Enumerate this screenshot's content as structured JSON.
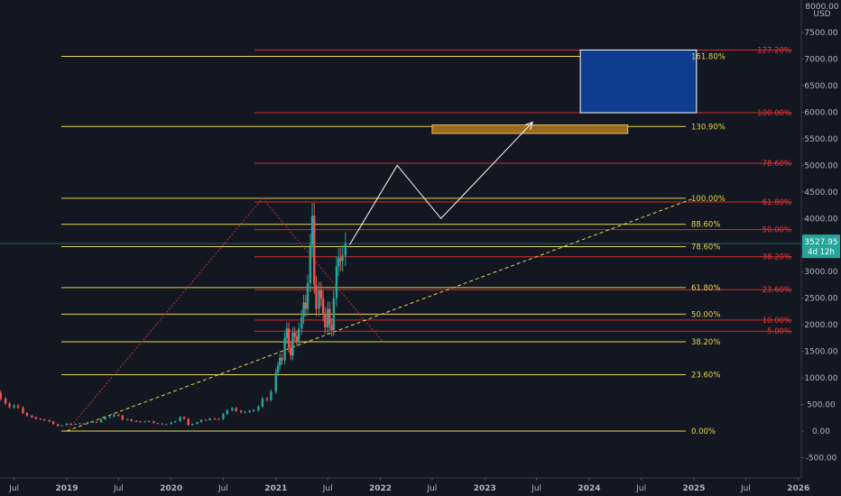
{
  "chart_data": {
    "type": "candlestick",
    "currency": "USD",
    "y_axis": {
      "top_label": "8000.00",
      "ticks": [
        "7500.00",
        "7000.00",
        "6500.00",
        "6000.00",
        "5500.00",
        "5000.00",
        "4500.00",
        "4000.00",
        "3500.00",
        "3000.00",
        "2500.00",
        "2000.00",
        "1500.00",
        "1000.00",
        "500.00",
        "0.00",
        "-500.00"
      ],
      "ylim": [
        -700,
        8000
      ]
    },
    "x_axis": {
      "ticks": [
        "Jul",
        "2019",
        "Jul",
        "2020",
        "Jul",
        "2021",
        "Jul",
        "2022",
        "Jul",
        "2023",
        "Jul",
        "2024",
        "Jul",
        "2025",
        "Jul",
        "2026"
      ],
      "tick_dates": [
        "2018-07",
        "2019-01",
        "2019-07",
        "2020-01",
        "2020-07",
        "2021-01",
        "2021-07",
        "2022-01",
        "2022-07",
        "2023-01",
        "2023-07",
        "2024-01",
        "2024-07",
        "2025-01",
        "2025-07",
        "2026-01"
      ]
    },
    "price_tag": {
      "value": "3527.95",
      "countdown": "4d 12h"
    },
    "fib_yellow": [
      {
        "label": "161.80%",
        "price": 7050
      },
      {
        "label": "130.90%",
        "price": 5730
      },
      {
        "label": "100.00%",
        "price": 4380
      },
      {
        "label": "88.60%",
        "price": 3890
      },
      {
        "label": "78.60%",
        "price": 3470
      },
      {
        "label": "61.80%",
        "price": 2700
      },
      {
        "label": "50.00%",
        "price": 2200
      },
      {
        "label": "38.20%",
        "price": 1680
      },
      {
        "label": "23.60%",
        "price": 1060
      },
      {
        "label": "0.00%",
        "price": 0
      }
    ],
    "fib_red": [
      {
        "label": "127.20%",
        "price": 7170
      },
      {
        "label": "100.00%",
        "price": 5990
      },
      {
        "label": "78.60%",
        "price": 5040
      },
      {
        "label": "61.80%",
        "price": 4310
      },
      {
        "label": "50.00%",
        "price": 3790
      },
      {
        "label": "38.20%",
        "price": 3280
      },
      {
        "label": "23.60%",
        "price": 2660
      },
      {
        "label": "10.00%",
        "price": 2090
      },
      {
        "label": "5.00%",
        "price": 1880
      }
    ],
    "candles": [
      {
        "d": "2018-05-01",
        "o": 790,
        "c": 720
      },
      {
        "d": "2018-05-15",
        "o": 720,
        "c": 610
      },
      {
        "d": "2018-06-01",
        "o": 610,
        "c": 520
      },
      {
        "d": "2018-06-15",
        "o": 520,
        "c": 450
      },
      {
        "d": "2018-07-01",
        "o": 450,
        "c": 480
      },
      {
        "d": "2018-07-15",
        "o": 480,
        "c": 440
      },
      {
        "d": "2018-08-01",
        "o": 440,
        "c": 340
      },
      {
        "d": "2018-08-15",
        "o": 340,
        "c": 290
      },
      {
        "d": "2018-09-01",
        "o": 290,
        "c": 260
      },
      {
        "d": "2018-09-15",
        "o": 260,
        "c": 230
      },
      {
        "d": "2018-10-01",
        "o": 230,
        "c": 220
      },
      {
        "d": "2018-10-15",
        "o": 220,
        "c": 205
      },
      {
        "d": "2018-11-01",
        "o": 205,
        "c": 180
      },
      {
        "d": "2018-11-15",
        "o": 180,
        "c": 130
      },
      {
        "d": "2018-12-01",
        "o": 130,
        "c": 95
      },
      {
        "d": "2018-12-15",
        "o": 95,
        "c": 110
      },
      {
        "d": "2019-01-01",
        "o": 110,
        "c": 140
      },
      {
        "d": "2019-01-15",
        "o": 140,
        "c": 120
      },
      {
        "d": "2019-02-01",
        "o": 120,
        "c": 135
      },
      {
        "d": "2019-02-15",
        "o": 135,
        "c": 145
      },
      {
        "d": "2019-03-01",
        "o": 145,
        "c": 138
      },
      {
        "d": "2019-03-15",
        "o": 138,
        "c": 165
      },
      {
        "d": "2019-04-01",
        "o": 165,
        "c": 175
      },
      {
        "d": "2019-04-15",
        "o": 175,
        "c": 165
      },
      {
        "d": "2019-05-01",
        "o": 165,
        "c": 220
      },
      {
        "d": "2019-05-15",
        "o": 220,
        "c": 260
      },
      {
        "d": "2019-06-01",
        "o": 260,
        "c": 275
      },
      {
        "d": "2019-06-15",
        "o": 275,
        "c": 310
      },
      {
        "d": "2019-07-01",
        "o": 310,
        "c": 290
      },
      {
        "d": "2019-07-15",
        "o": 290,
        "c": 215
      },
      {
        "d": "2019-08-01",
        "o": 215,
        "c": 220
      },
      {
        "d": "2019-08-15",
        "o": 220,
        "c": 190
      },
      {
        "d": "2019-09-01",
        "o": 190,
        "c": 180
      },
      {
        "d": "2019-09-15",
        "o": 180,
        "c": 170
      },
      {
        "d": "2019-10-01",
        "o": 170,
        "c": 180
      },
      {
        "d": "2019-10-15",
        "o": 180,
        "c": 185
      },
      {
        "d": "2019-11-01",
        "o": 185,
        "c": 150
      },
      {
        "d": "2019-11-15",
        "o": 150,
        "c": 140
      },
      {
        "d": "2019-12-01",
        "o": 140,
        "c": 130
      },
      {
        "d": "2019-12-15",
        "o": 130,
        "c": 132
      },
      {
        "d": "2020-01-01",
        "o": 132,
        "c": 165
      },
      {
        "d": "2020-01-15",
        "o": 165,
        "c": 185
      },
      {
        "d": "2020-02-01",
        "o": 185,
        "c": 265
      },
      {
        "d": "2020-02-15",
        "o": 265,
        "c": 230
      },
      {
        "d": "2020-03-01",
        "o": 230,
        "c": 110
      },
      {
        "d": "2020-03-15",
        "o": 110,
        "c": 135
      },
      {
        "d": "2020-04-01",
        "o": 135,
        "c": 170
      },
      {
        "d": "2020-04-15",
        "o": 170,
        "c": 210
      },
      {
        "d": "2020-05-01",
        "o": 210,
        "c": 205
      },
      {
        "d": "2020-05-15",
        "o": 205,
        "c": 235
      },
      {
        "d": "2020-06-01",
        "o": 235,
        "c": 230
      },
      {
        "d": "2020-06-15",
        "o": 230,
        "c": 225
      },
      {
        "d": "2020-07-01",
        "o": 225,
        "c": 320
      },
      {
        "d": "2020-07-15",
        "o": 320,
        "c": 390
      },
      {
        "d": "2020-08-01",
        "o": 390,
        "c": 430
      },
      {
        "d": "2020-08-15",
        "o": 430,
        "c": 380
      },
      {
        "d": "2020-09-01",
        "o": 380,
        "c": 355
      },
      {
        "d": "2020-09-15",
        "o": 355,
        "c": 360
      },
      {
        "d": "2020-10-01",
        "o": 360,
        "c": 380
      },
      {
        "d": "2020-10-15",
        "o": 380,
        "c": 390
      },
      {
        "d": "2020-11-01",
        "o": 390,
        "c": 460
      },
      {
        "d": "2020-11-15",
        "o": 460,
        "c": 610
      },
      {
        "d": "2020-12-01",
        "o": 610,
        "c": 590
      },
      {
        "d": "2020-12-15",
        "o": 590,
        "c": 740
      },
      {
        "d": "2021-01-01",
        "o": 740,
        "c": 1100
      },
      {
        "d": "2021-01-08",
        "o": 1100,
        "c": 1230
      },
      {
        "d": "2021-01-15",
        "o": 1230,
        "c": 1380
      },
      {
        "d": "2021-01-22",
        "o": 1380,
        "c": 1330
      },
      {
        "d": "2021-02-01",
        "o": 1330,
        "c": 1750
      },
      {
        "d": "2021-02-08",
        "o": 1750,
        "c": 1930
      },
      {
        "d": "2021-02-15",
        "o": 1930,
        "c": 1570
      },
      {
        "d": "2021-02-22",
        "o": 1570,
        "c": 1420
      },
      {
        "d": "2021-03-01",
        "o": 1420,
        "c": 1850
      },
      {
        "d": "2021-03-08",
        "o": 1850,
        "c": 1780
      },
      {
        "d": "2021-03-15",
        "o": 1780,
        "c": 1700
      },
      {
        "d": "2021-03-22",
        "o": 1700,
        "c": 1930
      },
      {
        "d": "2021-04-01",
        "o": 1930,
        "c": 2150
      },
      {
        "d": "2021-04-08",
        "o": 2150,
        "c": 2420
      },
      {
        "d": "2021-04-15",
        "o": 2420,
        "c": 2300
      },
      {
        "d": "2021-04-22",
        "o": 2300,
        "c": 2780
      },
      {
        "d": "2021-05-01",
        "o": 2780,
        "c": 3500
      },
      {
        "d": "2021-05-08",
        "o": 3500,
        "c": 4050
      },
      {
        "d": "2021-05-15",
        "o": 4050,
        "c": 2750
      },
      {
        "d": "2021-05-22",
        "o": 2750,
        "c": 2300
      },
      {
        "d": "2021-06-01",
        "o": 2300,
        "c": 2650
      },
      {
        "d": "2021-06-08",
        "o": 2650,
        "c": 2500
      },
      {
        "d": "2021-06-15",
        "o": 2500,
        "c": 2200
      },
      {
        "d": "2021-06-22",
        "o": 2200,
        "c": 1950
      },
      {
        "d": "2021-07-01",
        "o": 1950,
        "c": 2300
      },
      {
        "d": "2021-07-08",
        "o": 2300,
        "c": 2000
      },
      {
        "d": "2021-07-15",
        "o": 2000,
        "c": 1900
      },
      {
        "d": "2021-07-22",
        "o": 1900,
        "c": 2500
      },
      {
        "d": "2021-08-01",
        "o": 2500,
        "c": 3100
      },
      {
        "d": "2021-08-08",
        "o": 3100,
        "c": 3250
      },
      {
        "d": "2021-08-15",
        "o": 3250,
        "c": 3200
      },
      {
        "d": "2021-08-22",
        "o": 3200,
        "c": 3300
      },
      {
        "d": "2021-09-01",
        "o": 3300,
        "c": 3527
      }
    ],
    "projection_path": [
      {
        "d": "2021-09-15",
        "p": 3500
      },
      {
        "d": "2022-03-01",
        "p": 5000
      },
      {
        "d": "2022-08-01",
        "p": 4000
      },
      {
        "d": "2023-06-15",
        "p": 5800
      }
    ],
    "trend_lines": [
      {
        "style": "red-dotted",
        "from": {
          "d": "2019-01-01",
          "p": 0
        },
        "to": {
          "d": "2020-11-15",
          "p": 4380
        }
      },
      {
        "style": "red-dotted",
        "from": {
          "d": "2020-11-15",
          "p": 4380
        },
        "to": {
          "d": "2022-01-10",
          "p": 1680
        }
      },
      {
        "style": "yellow-dashed",
        "from": {
          "d": "2019-01-01",
          "p": 0
        },
        "to": {
          "d": "2025-01-01",
          "p": 4380
        }
      }
    ],
    "zones": [
      {
        "style": "blue",
        "from": "2023-12-01",
        "to": "2025-01-10",
        "p_low": 5990,
        "p_high": 7170
      },
      {
        "style": "orange",
        "from": "2022-07-01",
        "to": "2024-05-15",
        "p_low": 5600,
        "p_high": 5760
      }
    ]
  }
}
